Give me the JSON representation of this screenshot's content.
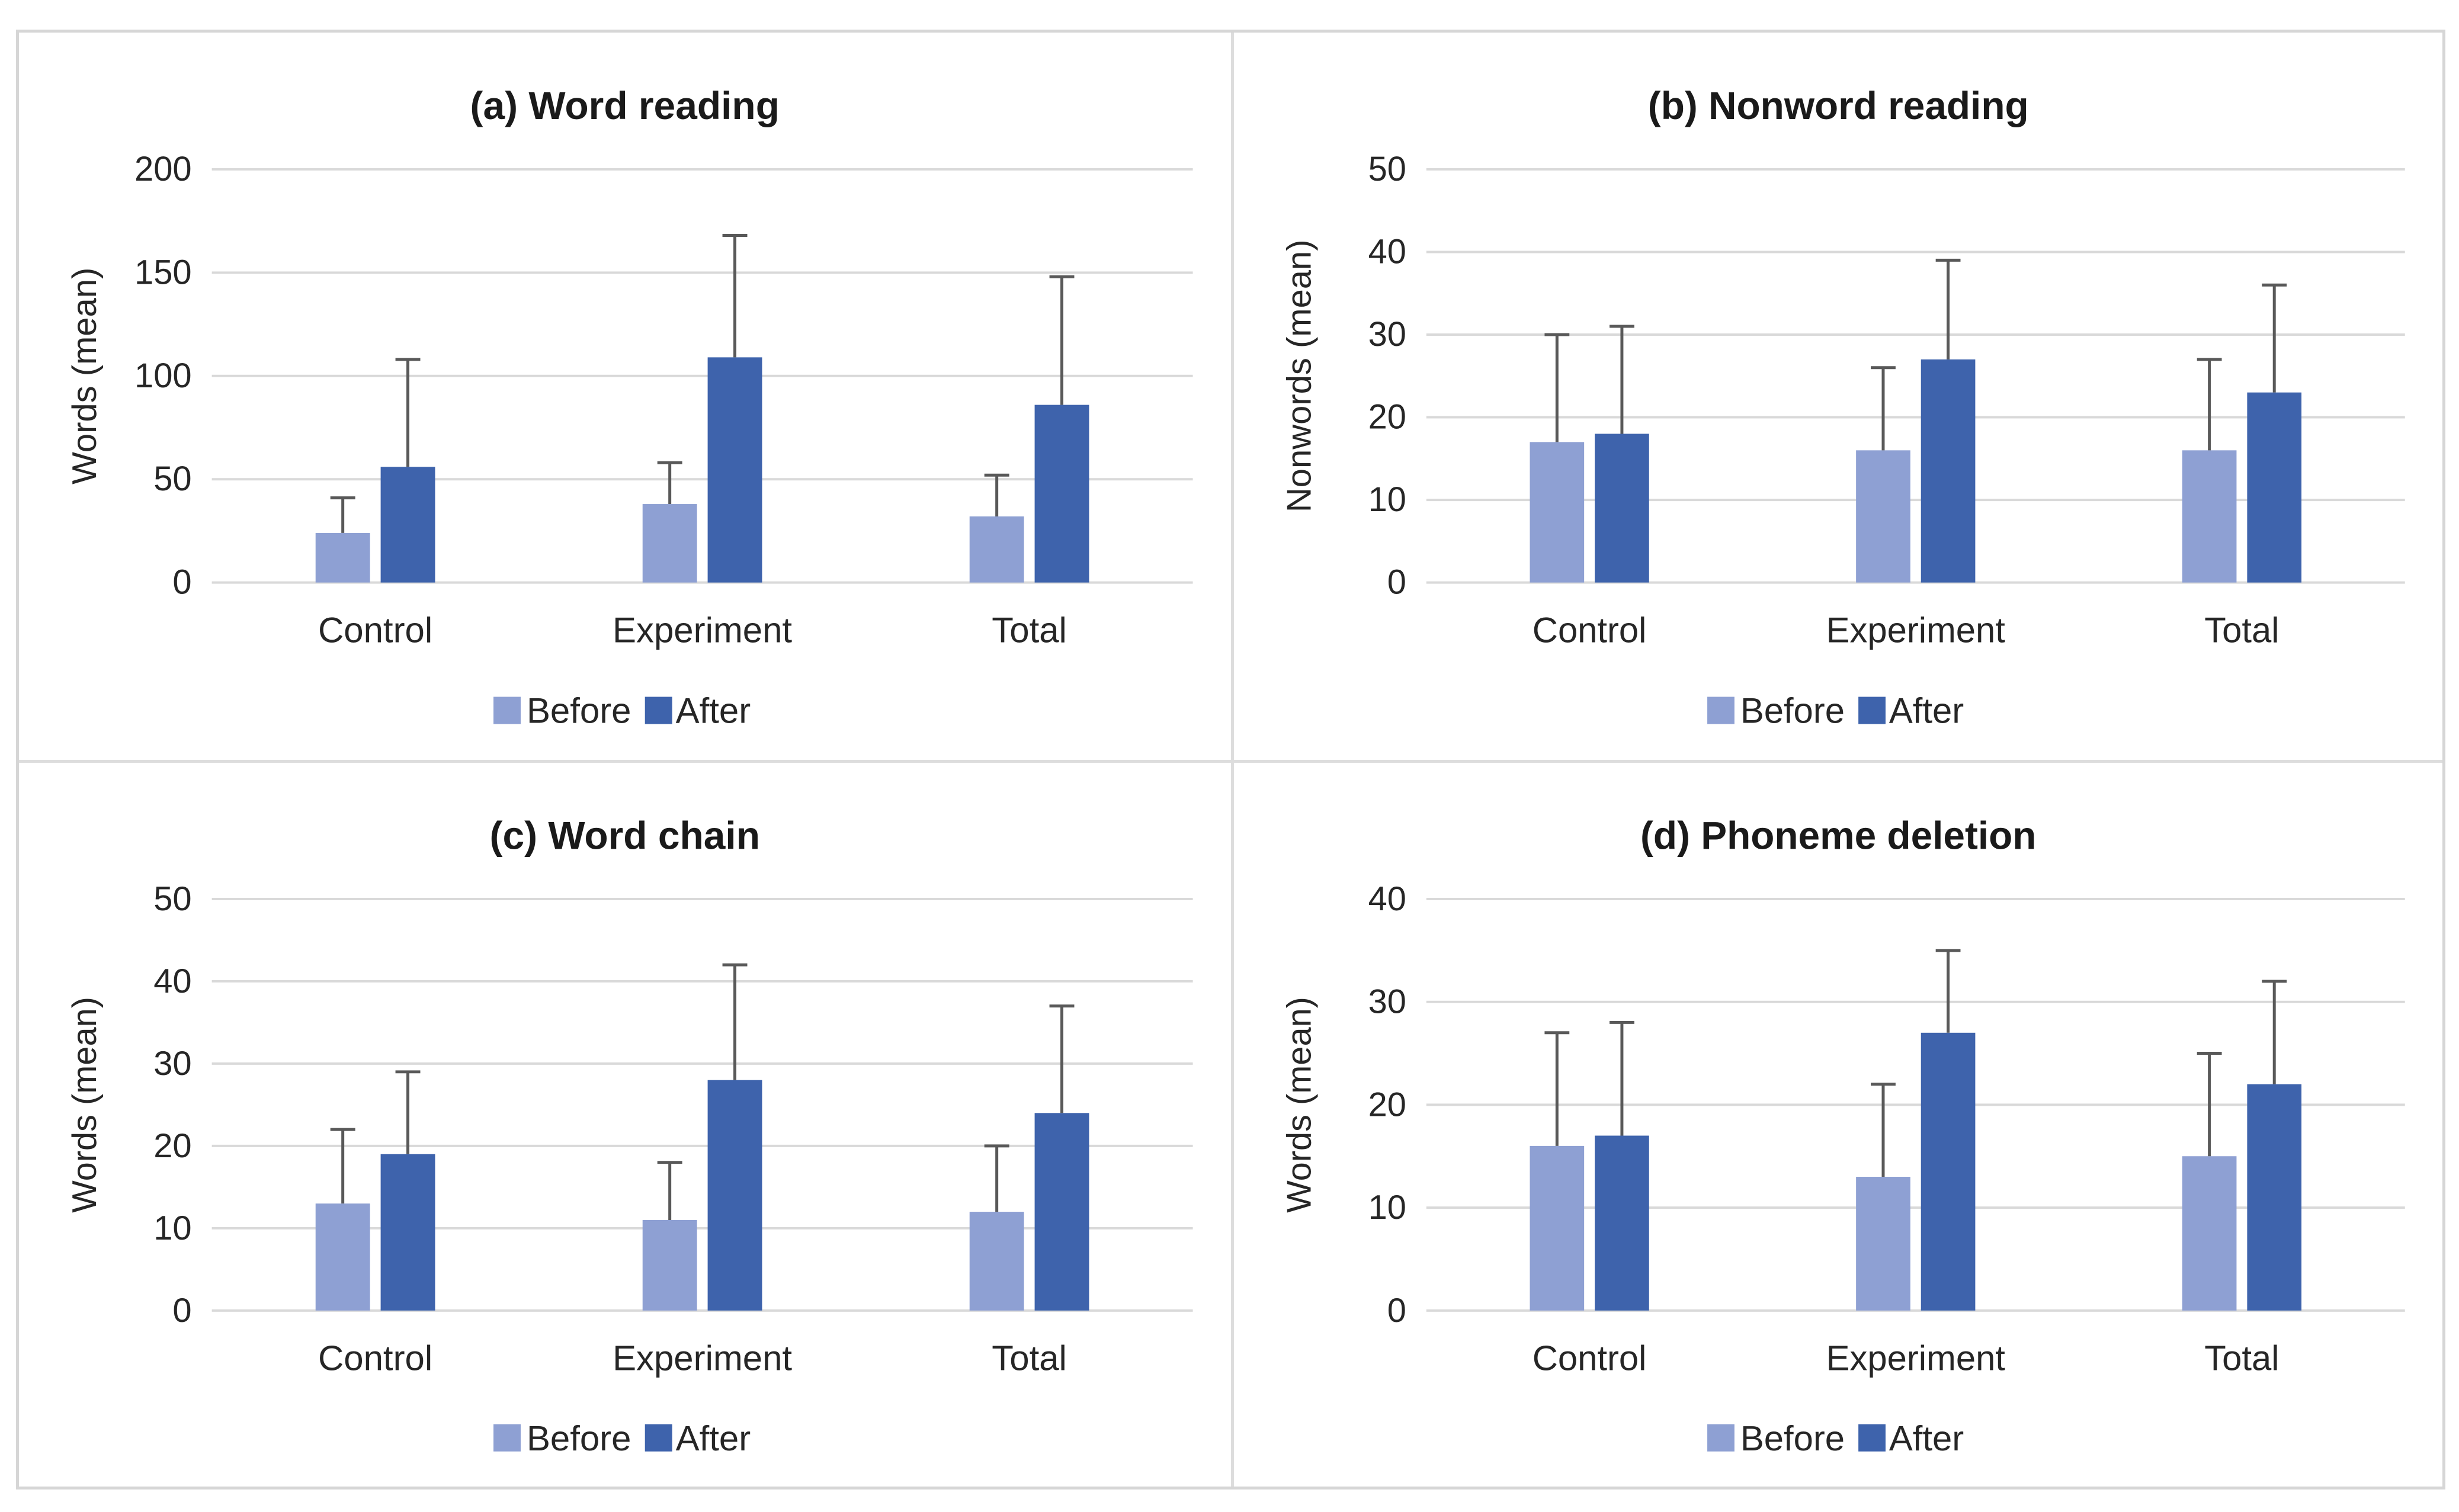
{
  "figure": {
    "background": "#ffffff",
    "frame_border_color": "#d6d6d6",
    "divider_color": "#dddddd"
  },
  "colors": {
    "before": "#8EA0D3",
    "after": "#3E63AC",
    "error_bar": "#595959",
    "gridline": "#D9D9D9",
    "axis_text": "#262626",
    "title_text": "#1A1A1A"
  },
  "legend": {
    "items": [
      {
        "label": "Before",
        "color_key": "before"
      },
      {
        "label": "After",
        "color_key": "after"
      }
    ],
    "position": "bottom"
  },
  "chart_data": [
    {
      "id": "a",
      "type": "bar",
      "title": "(a) Word reading",
      "xlabel": "",
      "ylabel": "Words (mean)",
      "ylim": [
        0,
        200
      ],
      "yticks": [
        0,
        50,
        100,
        150,
        200
      ],
      "grid": true,
      "legend_position": "bottom",
      "categories": [
        "Control",
        "Experiment",
        "Total"
      ],
      "series": [
        {
          "name": "Before",
          "values": [
            24,
            38,
            32
          ],
          "error_top": [
            41,
            58,
            52
          ]
        },
        {
          "name": "After",
          "values": [
            56,
            109,
            86
          ],
          "error_top": [
            108,
            168,
            148
          ]
        }
      ]
    },
    {
      "id": "b",
      "type": "bar",
      "title": "(b) Nonword reading",
      "xlabel": "",
      "ylabel": "Nonwords (mean)",
      "ylim": [
        0,
        50
      ],
      "yticks": [
        0,
        10,
        20,
        30,
        40,
        50
      ],
      "grid": true,
      "legend_position": "bottom",
      "categories": [
        "Control",
        "Experiment",
        "Total"
      ],
      "series": [
        {
          "name": "Before",
          "values": [
            17,
            16,
            16
          ],
          "error_top": [
            30,
            26,
            27
          ]
        },
        {
          "name": "After",
          "values": [
            18,
            27,
            23
          ],
          "error_top": [
            31,
            39,
            36
          ]
        }
      ]
    },
    {
      "id": "c",
      "type": "bar",
      "title": "(c) Word chain",
      "xlabel": "",
      "ylabel": "Words (mean)",
      "ylim": [
        0,
        50
      ],
      "yticks": [
        0,
        10,
        20,
        30,
        40,
        50
      ],
      "grid": true,
      "legend_position": "bottom",
      "categories": [
        "Control",
        "Experiment",
        "Total"
      ],
      "series": [
        {
          "name": "Before",
          "values": [
            13,
            11,
            12
          ],
          "error_top": [
            22,
            18,
            20
          ]
        },
        {
          "name": "After",
          "values": [
            19,
            28,
            24
          ],
          "error_top": [
            29,
            42,
            37
          ]
        }
      ]
    },
    {
      "id": "d",
      "type": "bar",
      "title": "(d) Phoneme deletion",
      "xlabel": "",
      "ylabel": "Words (mean)",
      "ylim": [
        0,
        40
      ],
      "yticks": [
        0,
        10,
        20,
        30,
        40
      ],
      "grid": true,
      "legend_position": "bottom",
      "categories": [
        "Control",
        "Experiment",
        "Total"
      ],
      "series": [
        {
          "name": "Before",
          "values": [
            16,
            13,
            15
          ],
          "error_top": [
            27,
            22,
            25
          ]
        },
        {
          "name": "After",
          "values": [
            17,
            27,
            22
          ],
          "error_top": [
            28,
            35,
            32
          ]
        }
      ]
    }
  ]
}
